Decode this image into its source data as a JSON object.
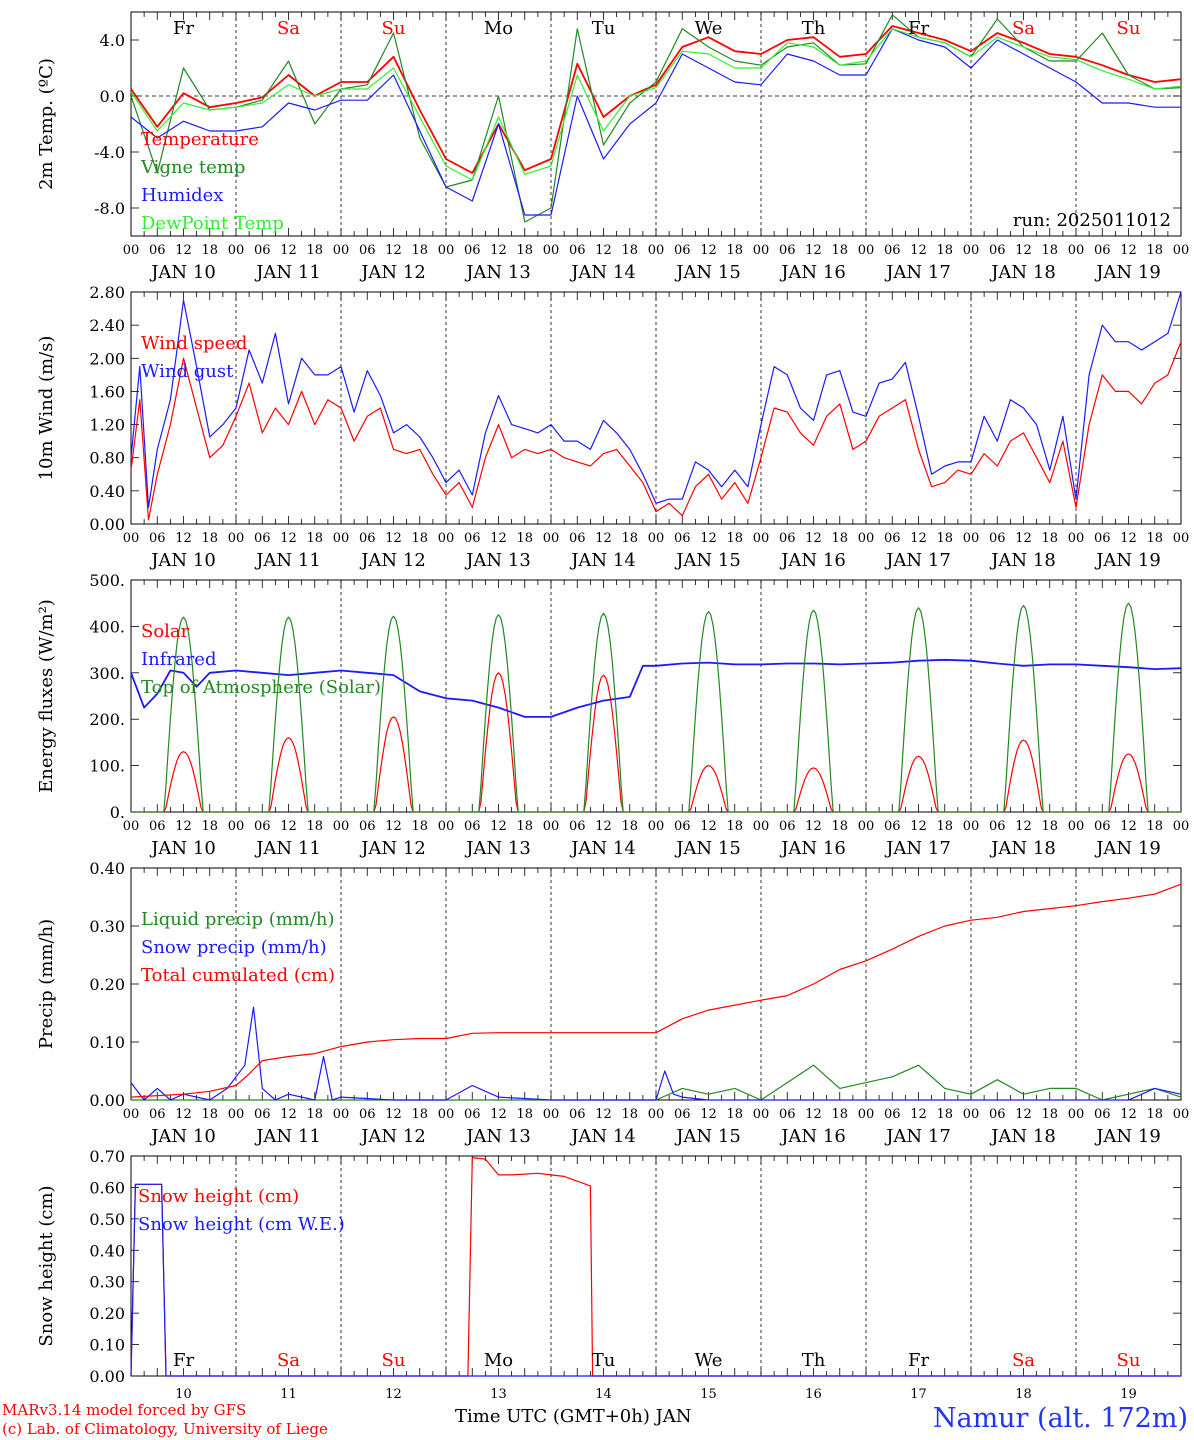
{
  "colors": {
    "red": "#ff0000",
    "green": "#228822",
    "blue": "#1a1aff",
    "lightgreen": "#33ee33",
    "black": "#000000"
  },
  "days": [
    {
      "abbr": "Fr",
      "weekend": false,
      "date": "JAN 10",
      "num": "10"
    },
    {
      "abbr": "Sa",
      "weekend": true,
      "date": "JAN 11",
      "num": "11"
    },
    {
      "abbr": "Su",
      "weekend": true,
      "date": "JAN 12",
      "num": "12"
    },
    {
      "abbr": "Mo",
      "weekend": false,
      "date": "JAN 13",
      "num": "13"
    },
    {
      "abbr": "Tu",
      "weekend": false,
      "date": "JAN 14",
      "num": "14"
    },
    {
      "abbr": "We",
      "weekend": false,
      "date": "JAN 15",
      "num": "15"
    },
    {
      "abbr": "Th",
      "weekend": false,
      "date": "JAN 16",
      "num": "16"
    },
    {
      "abbr": "Fr",
      "weekend": false,
      "date": "JAN 17",
      "num": "17"
    },
    {
      "abbr": "Sa",
      "weekend": true,
      "date": "JAN 18",
      "num": "18"
    },
    {
      "abbr": "Su",
      "weekend": true,
      "date": "JAN 19",
      "num": "19"
    }
  ],
  "hour_ticks": [
    "00",
    "06",
    "12",
    "18"
  ],
  "chart_data": [
    {
      "type": "line",
      "ylabel": "2m Temp. (ºC)",
      "ylim": [
        -10,
        6
      ],
      "yticks": [
        4.0,
        0.0,
        -4.0,
        -8.0
      ],
      "ytick_labels": [
        "4.0",
        "0.0",
        "-4.0",
        "-8.0"
      ],
      "zero_line": true,
      "day_labels": "top",
      "annotation": "run: 2025011012",
      "x_hours": [
        0,
        6,
        12,
        18,
        24,
        30,
        36,
        42,
        48,
        54,
        60,
        66,
        72,
        78,
        84,
        90,
        96,
        102,
        108,
        114,
        120,
        126,
        132,
        138,
        144,
        150,
        156,
        162,
        168,
        174,
        180,
        186,
        192,
        198,
        204,
        210,
        216,
        222,
        228,
        234,
        240
      ],
      "series": [
        {
          "name": "Temperature",
          "color": "red",
          "values": [
            0.5,
            -2.2,
            0.2,
            -0.8,
            -0.5,
            -0.1,
            1.5,
            0.0,
            1.0,
            1.0,
            2.8,
            -1.0,
            -4.5,
            -5.5,
            -2.0,
            -5.3,
            -4.5,
            2.3,
            -1.5,
            0.0,
            0.8,
            3.5,
            4.2,
            3.2,
            3.0,
            4.0,
            4.2,
            2.8,
            3.0,
            5.0,
            4.5,
            4.0,
            3.2,
            4.5,
            3.8,
            3.0,
            2.8,
            2.2,
            1.5,
            1.0,
            1.2
          ]
        },
        {
          "name": "Vigne temp",
          "color": "green",
          "values": [
            0.0,
            -5.5,
            2.0,
            -1.0,
            -0.8,
            -0.3,
            2.5,
            -2.0,
            0.5,
            0.8,
            4.5,
            -3.0,
            -6.5,
            -6.0,
            0.0,
            -9.0,
            -8.0,
            4.8,
            -3.5,
            -0.5,
            1.0,
            4.8,
            3.5,
            2.5,
            2.2,
            3.5,
            3.8,
            2.2,
            2.3,
            5.8,
            4.2,
            3.8,
            2.8,
            5.5,
            3.5,
            2.5,
            2.5,
            4.5,
            1.5,
            0.5,
            0.6
          ]
        },
        {
          "name": "Humidex",
          "color": "blue",
          "values": [
            -1.5,
            -3.0,
            -1.8,
            -2.5,
            -2.5,
            -2.2,
            -0.5,
            -1.0,
            -0.3,
            -0.3,
            1.5,
            -2.5,
            -6.5,
            -7.5,
            -2.0,
            -8.5,
            -8.5,
            0.0,
            -4.5,
            -2.0,
            -0.5,
            3.0,
            2.0,
            1.0,
            0.8,
            3.0,
            2.5,
            1.5,
            1.5,
            4.8,
            4.0,
            3.5,
            2.0,
            4.0,
            3.0,
            2.0,
            1.0,
            -0.5,
            -0.5,
            -0.8,
            -0.8
          ]
        },
        {
          "name": "DewPoint Temp",
          "color": "lightgreen",
          "values": [
            0.3,
            -2.5,
            -0.5,
            -1.0,
            -0.8,
            -0.5,
            0.8,
            0.0,
            0.5,
            0.5,
            2.0,
            -1.5,
            -5.0,
            -6.0,
            -1.5,
            -5.6,
            -5.0,
            1.5,
            -2.5,
            0.0,
            0.6,
            3.2,
            3.0,
            2.0,
            2.0,
            3.8,
            3.5,
            2.2,
            2.5,
            4.8,
            4.2,
            3.8,
            2.8,
            4.2,
            3.5,
            2.8,
            2.6,
            1.8,
            1.2,
            0.5,
            0.7
          ]
        }
      ]
    },
    {
      "type": "line",
      "ylabel": "10m Wind (m/s)",
      "ylim": [
        0,
        2.8
      ],
      "yticks": [
        2.8,
        2.4,
        2.0,
        1.6,
        1.2,
        0.8,
        0.4,
        0.0
      ],
      "ytick_labels": [
        "2.80",
        "2.40",
        "2.00",
        "1.60",
        "1.20",
        "0.80",
        "0.40",
        "0.00"
      ],
      "x_hours": [
        0,
        2,
        4,
        6,
        9,
        12,
        15,
        18,
        21,
        24,
        27,
        30,
        33,
        36,
        39,
        42,
        45,
        48,
        51,
        54,
        57,
        60,
        63,
        66,
        69,
        72,
        75,
        78,
        81,
        84,
        87,
        90,
        93,
        96,
        99,
        102,
        105,
        108,
        111,
        114,
        117,
        120,
        123,
        126,
        129,
        132,
        135,
        138,
        141,
        144,
        147,
        150,
        153,
        156,
        159,
        162,
        165,
        168,
        171,
        174,
        177,
        180,
        183,
        186,
        189,
        192,
        195,
        198,
        201,
        204,
        207,
        210,
        213,
        216,
        219,
        222,
        225,
        228,
        231,
        234,
        237,
        240
      ],
      "series": [
        {
          "name": "Wind speed",
          "color": "red",
          "values": [
            0.65,
            1.5,
            0.05,
            0.6,
            1.2,
            2.0,
            1.4,
            0.8,
            0.95,
            1.3,
            1.7,
            1.1,
            1.4,
            1.2,
            1.6,
            1.2,
            1.5,
            1.4,
            1.0,
            1.3,
            1.4,
            0.9,
            0.85,
            0.9,
            0.6,
            0.35,
            0.5,
            0.2,
            0.8,
            1.2,
            0.8,
            0.9,
            0.85,
            0.9,
            0.8,
            0.75,
            0.7,
            0.85,
            0.9,
            0.7,
            0.5,
            0.15,
            0.25,
            0.1,
            0.45,
            0.6,
            0.3,
            0.5,
            0.25,
            0.8,
            1.4,
            1.35,
            1.1,
            0.95,
            1.3,
            1.45,
            0.9,
            1.0,
            1.3,
            1.4,
            1.5,
            0.9,
            0.45,
            0.5,
            0.65,
            0.6,
            0.85,
            0.7,
            1.0,
            1.1,
            0.8,
            0.5,
            1.0,
            0.2,
            1.2,
            1.8,
            1.6,
            1.6,
            1.45,
            1.7,
            1.8,
            2.2
          ]
        },
        {
          "name": "Wind gust",
          "color": "blue",
          "values": [
            0.8,
            1.9,
            0.2,
            0.9,
            1.5,
            2.7,
            1.9,
            1.05,
            1.2,
            1.4,
            2.1,
            1.7,
            2.3,
            1.45,
            2.0,
            1.8,
            1.8,
            1.9,
            1.35,
            1.85,
            1.55,
            1.1,
            1.2,
            1.05,
            0.8,
            0.5,
            0.65,
            0.35,
            1.1,
            1.55,
            1.2,
            1.15,
            1.1,
            1.2,
            1.0,
            1.0,
            0.9,
            1.25,
            1.1,
            0.9,
            0.6,
            0.25,
            0.3,
            0.3,
            0.75,
            0.65,
            0.45,
            0.65,
            0.45,
            1.2,
            1.9,
            1.8,
            1.4,
            1.25,
            1.8,
            1.85,
            1.35,
            1.3,
            1.7,
            1.75,
            1.95,
            1.3,
            0.6,
            0.7,
            0.75,
            0.75,
            1.3,
            1.0,
            1.5,
            1.4,
            1.2,
            0.65,
            1.3,
            0.3,
            1.8,
            2.4,
            2.2,
            2.2,
            2.1,
            2.2,
            2.3,
            2.8
          ]
        }
      ]
    },
    {
      "type": "line",
      "ylabel": "Energy fluxes (W/m²)",
      "ylim": [
        0,
        500
      ],
      "yticks": [
        500,
        400,
        300,
        200,
        100,
        0
      ],
      "ytick_labels": [
        "500.",
        "400.",
        "300.",
        "200.",
        "100.",
        "0."
      ],
      "series": [
        {
          "name": "Solar",
          "color": "red",
          "daily_peaks": [
            130,
            160,
            205,
            300,
            295,
            100,
            95,
            120,
            155,
            125
          ]
        },
        {
          "name": "Infrared",
          "color": "blue",
          "x_hours": [
            0,
            3,
            6,
            9,
            12,
            15,
            18,
            24,
            30,
            36,
            42,
            48,
            54,
            60,
            66,
            72,
            78,
            84,
            90,
            96,
            102,
            108,
            114,
            117,
            120,
            126,
            132,
            138,
            144,
            150,
            156,
            162,
            168,
            174,
            180,
            186,
            192,
            198,
            204,
            210,
            216,
            222,
            228,
            234,
            240
          ],
          "values": [
            300,
            225,
            255,
            305,
            300,
            270,
            300,
            305,
            300,
            295,
            300,
            305,
            300,
            295,
            260,
            245,
            240,
            225,
            205,
            205,
            225,
            240,
            248,
            315,
            315,
            320,
            322,
            318,
            318,
            320,
            320,
            318,
            320,
            322,
            326,
            328,
            326,
            320,
            315,
            318,
            318,
            315,
            312,
            308,
            310
          ]
        },
        {
          "name": "Top of Atmosphere (Solar)",
          "color": "green",
          "daily_peaks": [
            420,
            420,
            422,
            425,
            428,
            432,
            435,
            440,
            445,
            450
          ]
        }
      ]
    },
    {
      "type": "line",
      "ylabel": "Precip (mm/h)",
      "ylim": [
        0,
        0.4
      ],
      "yticks": [
        0.4,
        0.3,
        0.2,
        0.1,
        0.0
      ],
      "ytick_labels": [
        "0.40",
        "0.30",
        "0.20",
        "0.10",
        "0.00"
      ],
      "series": [
        {
          "name": "Liquid precip (mm/h)",
          "color": "green",
          "x_hours": [
            0,
            120,
            126,
            132,
            138,
            144,
            150,
            156,
            162,
            168,
            174,
            180,
            186,
            192,
            198,
            204,
            210,
            216,
            222,
            228,
            234,
            240
          ],
          "values": [
            0,
            0,
            0.02,
            0.01,
            0.02,
            0.0,
            0.03,
            0.06,
            0.02,
            0.03,
            0.04,
            0.06,
            0.02,
            0.01,
            0.035,
            0.01,
            0.02,
            0.02,
            0.0,
            0.01,
            0.02,
            0.005
          ]
        },
        {
          "name": "Snow precip (mm/h)",
          "color": "blue",
          "x_hours": [
            0,
            3,
            6,
            9,
            12,
            18,
            22,
            26,
            28,
            30,
            33,
            36,
            42,
            44,
            46,
            48,
            60,
            72,
            78,
            84,
            96,
            108,
            120,
            122,
            124,
            126,
            132,
            138,
            144,
            150,
            156,
            162,
            168,
            174,
            180,
            186,
            192,
            198,
            204,
            210,
            216,
            222,
            228,
            234,
            240
          ],
          "values": [
            0.03,
            0.0,
            0.02,
            0.0,
            0.01,
            0.0,
            0.02,
            0.06,
            0.16,
            0.02,
            0.0,
            0.01,
            0.0,
            0.075,
            0.0,
            0.005,
            0.0,
            0.0,
            0.025,
            0.005,
            0.0,
            0.0,
            0.0,
            0.05,
            0.01,
            0.005,
            0.0,
            0.0,
            0.0,
            0.0,
            0.0,
            0.0,
            0.0,
            0.0,
            0.0,
            0.0,
            0.0,
            0.0,
            0.0,
            0.0,
            0.0,
            0.0,
            0.0,
            0.02,
            0.01
          ]
        },
        {
          "name": "Total cumulated (cm)",
          "color": "red",
          "x_hours": [
            0,
            12,
            18,
            24,
            27,
            30,
            36,
            42,
            48,
            54,
            60,
            66,
            72,
            78,
            84,
            96,
            108,
            120,
            126,
            132,
            144,
            150,
            156,
            162,
            168,
            174,
            180,
            186,
            192,
            198,
            204,
            210,
            216,
            222,
            228,
            234,
            240
          ],
          "values": [
            0.005,
            0.01,
            0.015,
            0.025,
            0.045,
            0.068,
            0.075,
            0.08,
            0.092,
            0.1,
            0.104,
            0.106,
            0.106,
            0.115,
            0.116,
            0.116,
            0.116,
            0.116,
            0.14,
            0.155,
            0.172,
            0.18,
            0.2,
            0.225,
            0.24,
            0.26,
            0.282,
            0.3,
            0.31,
            0.315,
            0.325,
            0.33,
            0.335,
            0.342,
            0.348,
            0.355,
            0.372
          ]
        }
      ]
    },
    {
      "type": "line",
      "ylabel": "Snow height (cm)",
      "ylim": [
        0,
        0.7
      ],
      "yticks": [
        0.7,
        0.6,
        0.5,
        0.4,
        0.3,
        0.2,
        0.1,
        0.0
      ],
      "ytick_labels": [
        "0.70",
        "0.60",
        "0.50",
        "0.40",
        "0.30",
        "0.20",
        "0.10",
        "0.00"
      ],
      "day_labels": "bottom",
      "series": [
        {
          "name": "Snow height (cm)",
          "color": "red",
          "x_hours": [
            0,
            1,
            7,
            8,
            77,
            78,
            81,
            84,
            87,
            93,
            96,
            99,
            105,
            105.5,
            240
          ],
          "values": [
            0,
            0.61,
            0.61,
            0,
            0,
            0.695,
            0.69,
            0.64,
            0.64,
            0.645,
            0.64,
            0.635,
            0.605,
            0,
            0
          ]
        },
        {
          "name": "Snow height (cm W.E.)",
          "color": "blue",
          "x_hours": [
            0,
            1,
            7,
            8,
            240
          ],
          "values": [
            0,
            0.61,
            0.61,
            0,
            0
          ]
        }
      ]
    }
  ],
  "xlabel": "Time UTC (GMT+0h) JAN",
  "footer": {
    "model": "MARv3.14 model forced by GFS",
    "credit": "(c) Lab. of Climatology, University of Liege",
    "station": "Namur (alt. 172m)"
  }
}
